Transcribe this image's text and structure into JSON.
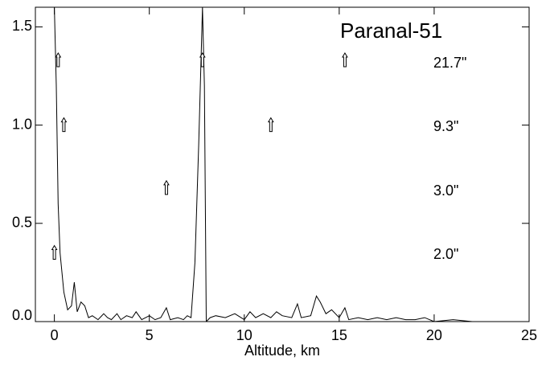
{
  "chart_data": {
    "type": "line",
    "title": "Paranal-51",
    "x_label": "Altitude, km",
    "x": [
      0,
      0.1,
      0.2,
      0.3,
      0.5,
      0.7,
      0.9,
      1.05,
      1.2,
      1.4,
      1.6,
      1.8,
      2.0,
      2.3,
      2.6,
      2.8,
      3.0,
      3.3,
      3.5,
      3.8,
      4.1,
      4.3,
      4.6,
      5.0,
      5.3,
      5.6,
      5.9,
      6.1,
      6.5,
      6.8,
      7.0,
      7.2,
      7.4,
      7.6,
      7.8,
      7.9,
      8.0,
      8.2,
      8.5,
      9.0,
      9.5,
      10.0,
      10.3,
      10.6,
      11.0,
      11.4,
      11.7,
      12.0,
      12.5,
      12.8,
      13.0,
      13.5,
      13.8,
      14.0,
      14.3,
      14.6,
      15.0,
      15.3,
      15.5,
      16.0,
      16.5,
      17.0,
      17.5,
      18.0,
      18.5,
      19.0,
      19.5,
      20.0,
      21.0,
      22.0,
      22.5
    ],
    "values": [
      1.6,
      1.2,
      0.6,
      0.35,
      0.15,
      0.06,
      0.08,
      0.2,
      0.05,
      0.1,
      0.08,
      0.02,
      0.03,
      0.01,
      0.04,
      0.02,
      0.01,
      0.04,
      0.01,
      0.03,
      0.02,
      0.05,
      0.01,
      0.03,
      0.01,
      0.02,
      0.07,
      0.01,
      0.02,
      0.01,
      0.03,
      0.02,
      0.3,
      0.9,
      1.6,
      1.2,
      0.0,
      0.02,
      0.03,
      0.02,
      0.04,
      0.01,
      0.05,
      0.02,
      0.04,
      0.02,
      0.05,
      0.03,
      0.02,
      0.09,
      0.02,
      0.03,
      0.13,
      0.1,
      0.04,
      0.06,
      0.02,
      0.07,
      0.01,
      0.02,
      0.01,
      0.02,
      0.01,
      0.02,
      0.01,
      0.01,
      0.02,
      0.0,
      0.01,
      0.0,
      0.0
    ],
    "color": "#000000",
    "markers": {
      "x": [
        0.2,
        0.5,
        7.8,
        11.4,
        15.3,
        5.9,
        0.0
      ],
      "y": [
        1.33,
        1.0,
        1.33,
        1.0,
        1.33,
        0.68,
        0.35
      ]
    },
    "annotations": [
      "21.7\"",
      "9.3\"",
      "3.0\"",
      "2.0\""
    ],
    "xlim": [
      -1,
      25
    ],
    "xticks": [
      0,
      5,
      10,
      15,
      20,
      25
    ],
    "ylim": [
      0,
      1.6
    ],
    "yticks": [
      {
        "value": 0,
        "label": "0.0"
      },
      0.5,
      {
        "value": 1,
        "label": "1.0"
      },
      1.5
    ]
  }
}
